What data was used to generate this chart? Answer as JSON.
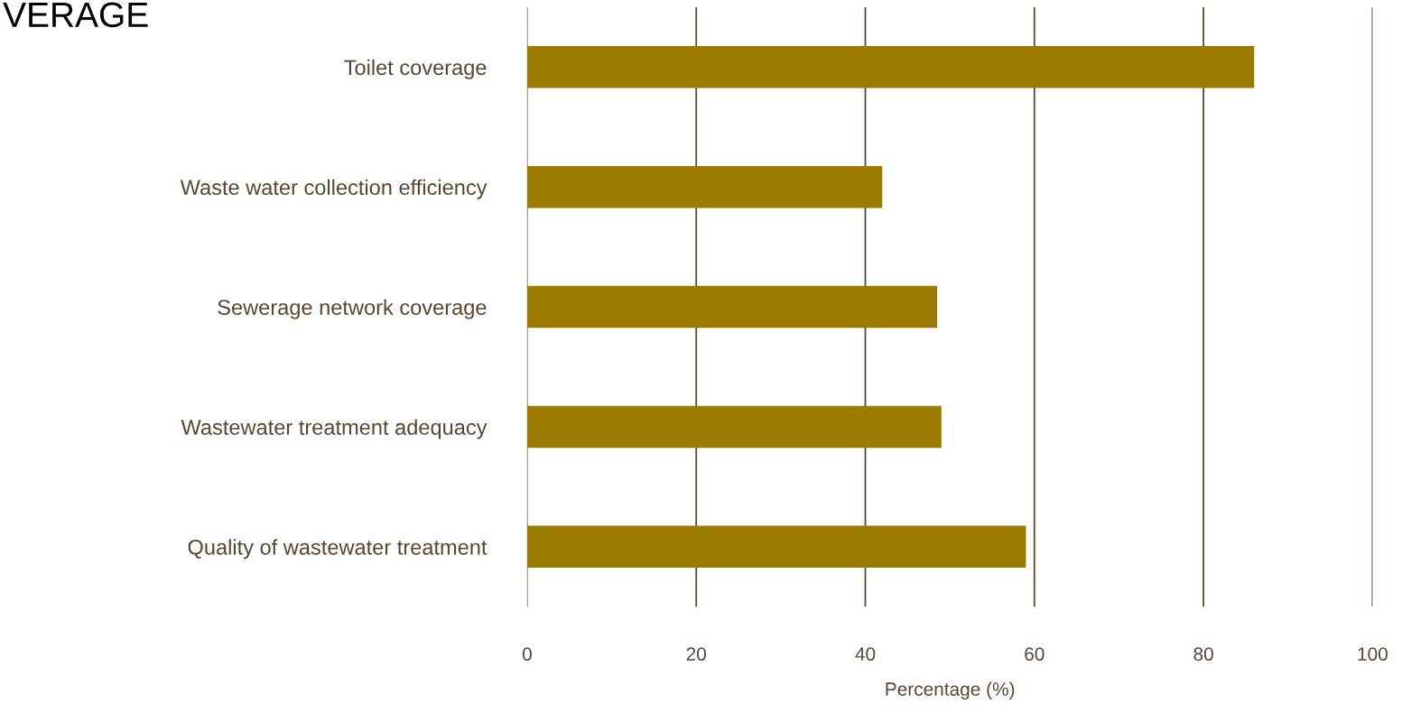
{
  "chart_data": {
    "type": "bar",
    "orientation": "horizontal",
    "title": "VERAGE",
    "categories": [
      "Toilet coverage",
      "Waste water collection efficiency",
      "Sewerage network coverage",
      "Wastewater treatment adequacy",
      "Quality of wastewater treatment"
    ],
    "values": [
      86,
      42,
      48.5,
      49,
      59
    ],
    "color": "#9a7b00",
    "xlabel": "Percentage (%)",
    "xlim": [
      0,
      100
    ],
    "xticks": [
      0,
      20,
      40,
      60,
      80,
      100
    ],
    "grid": "x",
    "legend": false
  }
}
